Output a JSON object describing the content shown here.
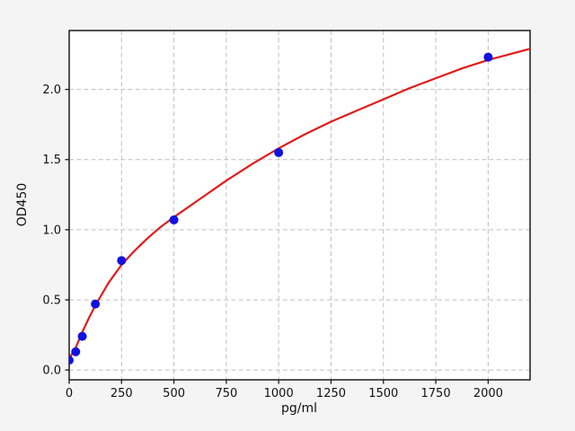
{
  "chart_data": {
    "type": "scatter",
    "title": "",
    "xlabel": "pg/ml",
    "ylabel": "OD450",
    "xlim": [
      0,
      2200
    ],
    "ylim": [
      -0.07,
      2.42
    ],
    "x_ticks": [
      0,
      250,
      500,
      750,
      1000,
      1250,
      1500,
      1750,
      2000
    ],
    "y_ticks": [
      0.0,
      0.5,
      1.0,
      1.5,
      2.0
    ],
    "grid": {
      "show": true,
      "style": "dashed",
      "color": "#bfbfbf"
    },
    "legend": {
      "show": false
    },
    "series": [
      {
        "name": "standard-points",
        "kind": "scatter",
        "marker": "circle",
        "marker_radius": 5,
        "color": "#1212e0",
        "x": [
          0,
          31.25,
          62.5,
          125,
          250,
          500,
          1000,
          2000
        ],
        "y": [
          0.07,
          0.13,
          0.24,
          0.47,
          0.78,
          1.07,
          1.55,
          2.23
        ]
      },
      {
        "name": "fit-curve",
        "kind": "line",
        "color": "#e01b1b",
        "line_width": 2.2,
        "x": [
          0,
          15,
          31.25,
          47,
          62.5,
          94,
          125,
          187.5,
          250,
          312,
          375,
          437,
          500,
          625,
          750,
          875,
          1000,
          1125,
          1250,
          1375,
          1500,
          1625,
          1750,
          1875,
          2000,
          2100,
          2200
        ],
        "y": [
          0.08,
          0.12,
          0.16,
          0.215,
          0.27,
          0.37,
          0.46,
          0.62,
          0.75,
          0.85,
          0.94,
          1.02,
          1.09,
          1.22,
          1.35,
          1.47,
          1.58,
          1.68,
          1.77,
          1.85,
          1.93,
          2.01,
          2.08,
          2.15,
          2.21,
          2.25,
          2.29
        ]
      }
    ],
    "colors": {
      "figure_background": "#f4f4f4",
      "plot_background": "#ffffff",
      "spine": "#1a1a1a",
      "tick_text": "#111111"
    }
  }
}
